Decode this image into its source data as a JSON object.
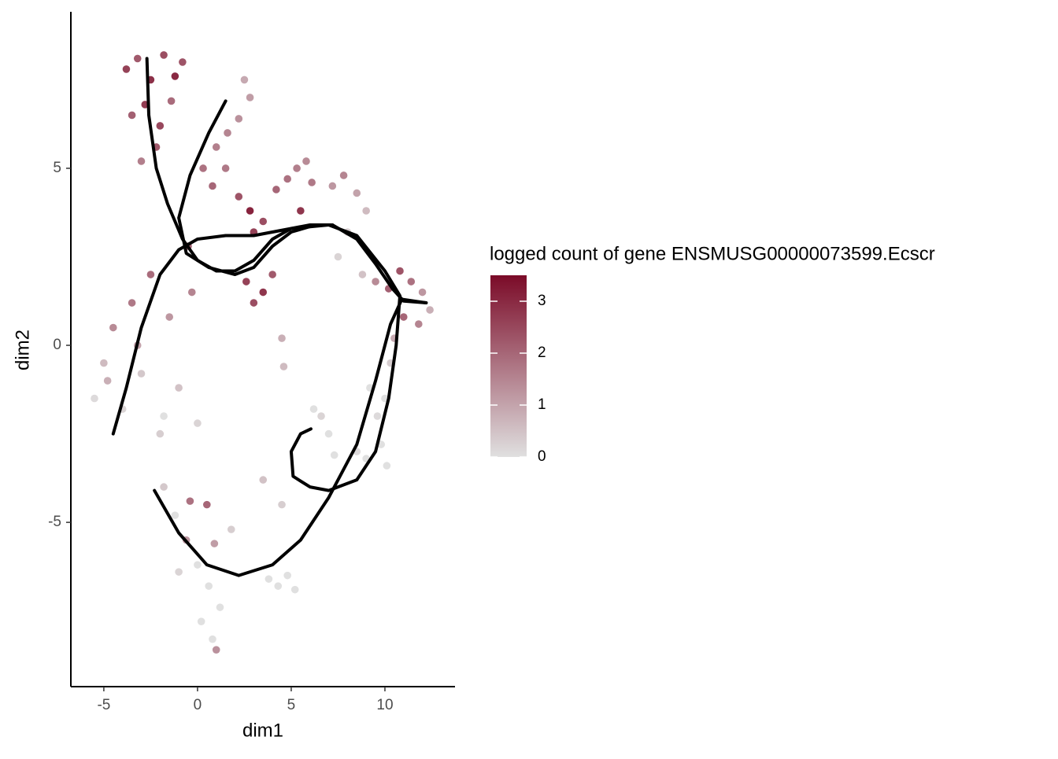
{
  "chart_data": {
    "type": "scatter",
    "xlabel": "dim1",
    "ylabel": "dim2",
    "xlim": [
      -6.76,
      13.74
    ],
    "xticks": [
      -5,
      0,
      5,
      10
    ],
    "ylim": [
      -9.64,
      9.42
    ],
    "yticks": [
      -5,
      0,
      5
    ],
    "x": [
      -3.8,
      -3.2,
      -2.5,
      -1.8,
      -1.2,
      -0.8,
      -3.5,
      -2.8,
      -2.0,
      -1.4,
      -3.0,
      -2.2,
      0.3,
      1.0,
      1.6,
      2.2,
      2.8,
      0.8,
      1.5,
      2.5,
      2.2,
      2.8,
      3.5,
      4.2,
      4.8,
      5.3,
      5.8,
      6.1,
      3.0,
      5.5,
      7.2,
      7.8,
      8.5,
      9.0,
      8.0,
      7.5,
      8.8,
      9.5,
      10.2,
      10.8,
      11.4,
      12.0,
      12.4,
      11.0,
      11.8,
      10.5,
      2.6,
      3.0,
      3.5,
      4.0,
      4.5,
      4.6,
      -5.5,
      -5.0,
      -4.5,
      -4.0,
      -3.5,
      -3.0,
      -2.5,
      -2.0,
      -1.5,
      -1.0,
      -0.5,
      0.0,
      -4.8,
      -3.2,
      -1.8,
      -0.3,
      9.2,
      9.6,
      10.0,
      10.3,
      9.8,
      9.0,
      8.5,
      10.1,
      6.2,
      6.6,
      7.0,
      7.3,
      -1.8,
      -1.2,
      -0.6,
      0.0,
      0.6,
      1.2,
      -1.0,
      0.2,
      0.8,
      1.0,
      -0.4,
      1.8,
      0.5,
      0.9,
      3.8,
      4.3,
      4.8,
      5.2,
      4.5,
      3.5
    ],
    "y": [
      7.8,
      8.1,
      7.5,
      8.2,
      7.6,
      8.0,
      6.5,
      6.8,
      6.2,
      6.9,
      5.2,
      5.6,
      5.0,
      5.6,
      6.0,
      6.4,
      7.0,
      4.5,
      5.0,
      7.5,
      4.2,
      3.8,
      3.5,
      4.4,
      4.7,
      5.0,
      5.2,
      4.6,
      3.2,
      3.8,
      4.5,
      4.8,
      4.3,
      3.8,
      3.2,
      2.5,
      2.0,
      1.8,
      1.6,
      2.1,
      1.8,
      1.5,
      1.0,
      0.8,
      0.6,
      0.2,
      1.8,
      1.2,
      1.5,
      2.0,
      0.2,
      -0.6,
      -1.5,
      -0.5,
      0.5,
      -1.8,
      1.2,
      -0.8,
      2.0,
      -2.5,
      0.8,
      -1.2,
      2.8,
      -2.2,
      -1.0,
      0.0,
      -2.0,
      1.5,
      -1.2,
      -2.0,
      -1.5,
      -0.5,
      -2.8,
      -3.2,
      -3.0,
      -3.4,
      -1.8,
      -2.0,
      -2.5,
      -3.1,
      -4.0,
      -4.8,
      -5.5,
      -6.2,
      -6.8,
      -7.4,
      -6.4,
      -7.8,
      -8.3,
      -8.6,
      -4.4,
      -5.2,
      -4.5,
      -5.6,
      -6.6,
      -6.8,
      -6.5,
      -6.9,
      -4.5,
      -3.8
    ],
    "values": [
      2.6,
      2.2,
      2.9,
      2.4,
      3.0,
      2.3,
      2.1,
      2.7,
      2.5,
      1.9,
      1.6,
      2.2,
      1.8,
      1.6,
      1.5,
      1.3,
      1.1,
      2.0,
      1.7,
      0.9,
      2.3,
      3.1,
      2.4,
      2.0,
      1.8,
      1.6,
      1.4,
      1.7,
      2.6,
      2.8,
      1.2,
      1.5,
      1.0,
      0.6,
      0.3,
      0.2,
      0.5,
      1.4,
      2.1,
      2.3,
      1.8,
      1.2,
      0.8,
      2.0,
      1.5,
      0.9,
      2.6,
      2.4,
      2.8,
      2.2,
      0.8,
      0.6,
      0.1,
      0.6,
      1.4,
      0.2,
      1.7,
      0.4,
      1.9,
      0.3,
      1.2,
      0.5,
      2.0,
      0.2,
      0.8,
      1.0,
      0.0,
      1.5,
      0,
      0.1,
      0,
      0.3,
      0,
      0,
      0.1,
      0,
      0,
      0.2,
      0,
      0,
      0.4,
      0,
      1.2,
      0,
      0,
      0,
      0.2,
      0,
      0,
      1.3,
      1.8,
      0.3,
      2.0,
      1.1,
      0,
      0,
      0,
      0,
      0.3,
      0.5
    ],
    "color_title": "logged count of gene ENSMUSG00000073599.Ecscr",
    "color_low": "#e0e0e0",
    "color_high": "#7b0b28",
    "colorlim": [
      0,
      3.5
    ],
    "colorticks": [
      0,
      1,
      2,
      3
    ],
    "curve_color": "#000000",
    "curves": [
      {
        "x": [
          -2.7,
          -2.6,
          -2.2,
          -1.6,
          -0.8,
          0,
          1,
          2,
          3,
          4,
          5,
          6,
          7.2,
          8.5,
          9.5,
          10.4,
          11,
          12.2
        ],
        "y": [
          8.1,
          6.5,
          5,
          4,
          3,
          2.4,
          2.1,
          2.1,
          2.4,
          3.0,
          3.3,
          3.4,
          3.4,
          3.0,
          2.3,
          1.6,
          1.25,
          1.2
        ]
      },
      {
        "x": [
          1.5,
          0.6,
          -0.4,
          -1,
          -0.6,
          0.6,
          2,
          3,
          4,
          5,
          6.3,
          7.2
        ],
        "y": [
          6.9,
          6,
          4.8,
          3.6,
          2.6,
          2.2,
          2.0,
          2.2,
          2.8,
          3.2,
          3.4,
          3.4
        ]
      },
      {
        "x": [
          -4.5,
          -3.8,
          -3,
          -2,
          -1,
          0,
          1.5,
          3,
          5,
          7,
          8.5,
          10,
          10.8,
          10.6,
          10.2,
          9.5,
          8.5,
          7,
          6,
          5.1,
          5.0,
          5.5,
          6.05
        ],
        "y": [
          -2.5,
          -1.2,
          0.5,
          2,
          2.7,
          3.0,
          3.1,
          3.1,
          3.3,
          3.4,
          3.1,
          2.1,
          1.4,
          0,
          -1.5,
          -3,
          -3.8,
          -4.1,
          -4.0,
          -3.7,
          -3.0,
          -2.5,
          -2.36
        ]
      },
      {
        "x": [
          -2.3,
          -1,
          0.5,
          2.2,
          4,
          5.5,
          7,
          8.5,
          9.5,
          10.3,
          10.9,
          12.2
        ],
        "y": [
          -4.1,
          -5.3,
          -6.2,
          -6.5,
          -6.2,
          -5.5,
          -4.3,
          -2.8,
          -1.0,
          0.6,
          1.3,
          1.2
        ]
      }
    ]
  }
}
